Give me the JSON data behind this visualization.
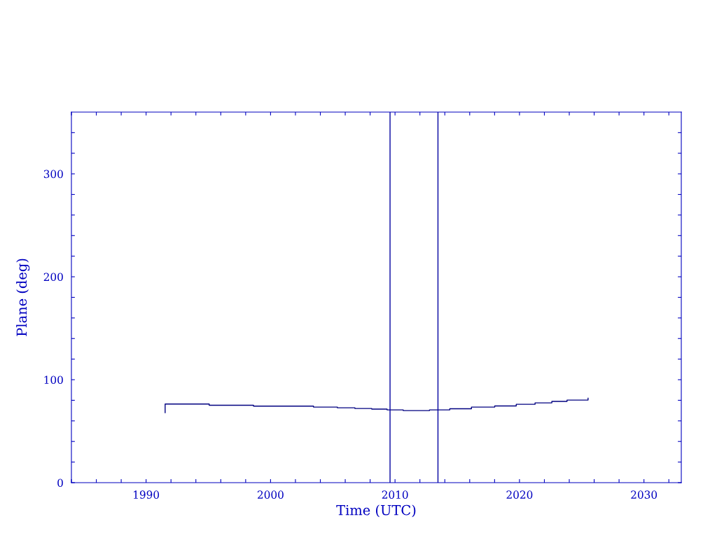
{
  "chart_data": {
    "type": "step",
    "xlabel": "Time (UTC)",
    "ylabel": "Plane (deg)",
    "x": [
      1991.53,
      1991.53,
      1995.07,
      1998.63,
      2003.45,
      2005.37,
      2006.78,
      2008.13,
      2009.36,
      2010.66,
      2012.77,
      2014.4,
      2016.14,
      2018.01,
      2019.74,
      2021.25,
      2022.6,
      2023.82,
      2025.51
    ],
    "series": [
      {
        "color": "#000080",
        "values": [
          68,
          76.4,
          75.2,
          74.3,
          73.4,
          72.7,
          72.0,
          71.4,
          70.7,
          70.0,
          70.7,
          71.8,
          73.4,
          74.5,
          76.1,
          77.5,
          78.9,
          80.2,
          82.0
        ]
      }
    ],
    "xlim": [
      1984,
      2033
    ],
    "xticks": [
      {
        "value": 1984,
        "label": null
      },
      {
        "value": 1986,
        "label": null
      },
      {
        "value": 1988,
        "label": null
      },
      1990,
      {
        "value": 1992,
        "label": null
      },
      {
        "value": 1994,
        "label": null
      },
      {
        "value": 1996,
        "label": null
      },
      {
        "value": 1998,
        "label": null
      },
      2000,
      {
        "value": 2002,
        "label": null
      },
      {
        "value": 2004,
        "label": null
      },
      {
        "value": 2006,
        "label": null
      },
      {
        "value": 2008,
        "label": null
      },
      2010,
      {
        "value": 2012,
        "label": null
      },
      {
        "value": 2014,
        "label": null
      },
      {
        "value": 2016,
        "label": null
      },
      {
        "value": 2018,
        "label": null
      },
      2020,
      {
        "value": 2022,
        "label": null
      },
      {
        "value": 2024,
        "label": null
      },
      {
        "value": 2026,
        "label": null
      },
      {
        "value": 2028,
        "label": null
      },
      2030,
      {
        "value": 2032,
        "label": null
      }
    ],
    "ylim": [
      0,
      360
    ],
    "yticks": [
      0,
      {
        "value": 20,
        "label": null
      },
      {
        "value": 40,
        "label": null
      },
      {
        "value": 60,
        "label": null
      },
      {
        "value": 80,
        "label": null
      },
      100,
      {
        "value": 120,
        "label": null
      },
      {
        "value": 140,
        "label": null
      },
      {
        "value": 160,
        "label": null
      },
      {
        "value": 180,
        "label": null
      },
      200,
      {
        "value": 220,
        "label": null
      },
      {
        "value": 240,
        "label": null
      },
      {
        "value": 260,
        "label": null
      },
      {
        "value": 280,
        "label": null
      },
      300,
      {
        "value": 320,
        "label": null
      },
      {
        "value": 340,
        "label": null
      }
    ],
    "ref_lines": [
      {
        "axis": "x",
        "value": 2009.6,
        "color": "#0000a0"
      },
      {
        "axis": "x",
        "value": 2013.45,
        "color": "#0000a0"
      }
    ],
    "grid": false,
    "legend": false
  }
}
